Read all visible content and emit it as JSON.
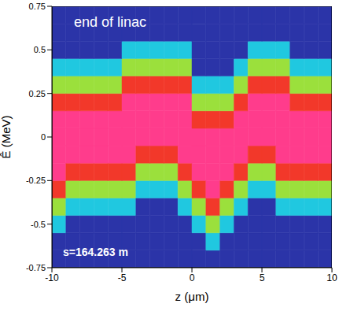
{
  "chart_data": {
    "type": "heatmap",
    "annotations": [
      "end of linac",
      "s=164.263 m"
    ],
    "xlabel": "z (μm)",
    "ylabel": "Ê (MeV)",
    "xlim": [
      -10,
      10
    ],
    "xticks": [
      -10,
      -5,
      0,
      5,
      10
    ],
    "ylim": [
      -0.75,
      0.75
    ],
    "yticks": [
      -0.75,
      -0.5,
      -0.25,
      0,
      0.25,
      0.5,
      0.75
    ],
    "x_edges": [
      -10,
      -9,
      -8,
      -7,
      -6,
      -5,
      -4,
      -3,
      -2,
      -1,
      0,
      1,
      2,
      3,
      4,
      5,
      6,
      7,
      8,
      9,
      10
    ],
    "y_edges": [
      -0.75,
      -0.65,
      -0.55,
      -0.45,
      -0.35,
      -0.25,
      -0.15,
      -0.05,
      0.05,
      0.15,
      0.25,
      0.35,
      0.45,
      0.55,
      0.65,
      0.75
    ],
    "cells": [
      [
        0,
        0,
        0,
        0,
        0,
        0,
        0,
        0,
        0,
        0,
        0,
        0,
        0,
        0,
        0,
        0,
        0,
        0,
        0,
        0
      ],
      [
        0,
        0,
        0,
        0,
        0,
        0,
        0,
        0,
        0,
        0,
        0,
        0.2,
        0,
        0,
        0,
        0,
        0,
        0,
        0,
        0
      ],
      [
        0.2,
        0,
        0,
        0,
        0,
        0,
        0,
        0,
        0,
        0,
        0.2,
        0.5,
        0.2,
        0,
        0,
        0,
        0,
        0,
        0,
        0
      ],
      [
        0.5,
        0.2,
        0.2,
        0.2,
        0.2,
        0.2,
        0,
        0,
        0,
        0.2,
        0.5,
        0.75,
        0.5,
        0.2,
        0,
        0,
        0.2,
        0.2,
        0.2,
        0.2
      ],
      [
        0.75,
        0.5,
        0.5,
        0.5,
        0.5,
        0.5,
        0.2,
        0.2,
        0.2,
        0.5,
        0.75,
        1,
        0.75,
        0.5,
        0.2,
        0.2,
        0.5,
        0.5,
        0.5,
        0.5
      ],
      [
        1,
        0.75,
        0.75,
        0.75,
        0.75,
        0.75,
        0.5,
        0.5,
        0.5,
        0.75,
        1,
        1,
        1,
        0.75,
        0.5,
        0.5,
        0.75,
        0.75,
        0.75,
        0.75
      ],
      [
        1,
        1,
        1,
        1,
        1,
        1,
        0.75,
        0.75,
        0.75,
        1,
        1,
        1,
        1,
        1,
        0.75,
        0.75,
        1,
        1,
        1,
        1
      ],
      [
        1,
        1,
        1,
        1,
        1,
        1,
        1,
        1,
        1,
        1,
        1,
        1,
        1,
        1,
        1,
        1,
        1,
        1,
        1,
        1
      ],
      [
        1,
        1,
        1,
        1,
        1,
        1,
        1,
        1,
        1,
        1,
        0.75,
        0.75,
        0.75,
        1,
        1,
        1,
        1,
        1,
        1,
        1
      ],
      [
        0.75,
        0.75,
        0.75,
        0.75,
        0.75,
        1,
        1,
        1,
        1,
        1,
        0.5,
        0.5,
        0.5,
        0.75,
        1,
        1,
        1,
        0.75,
        0.75,
        0.75
      ],
      [
        0.5,
        0.5,
        0.5,
        0.5,
        0.5,
        0.75,
        0.75,
        0.75,
        0.75,
        0.75,
        0.2,
        0.2,
        0.2,
        0.5,
        0.75,
        0.75,
        0.75,
        0.5,
        0.5,
        0.5
      ],
      [
        0.2,
        0.2,
        0.2,
        0.2,
        0.2,
        0.5,
        0.5,
        0.5,
        0.5,
        0.5,
        0,
        0,
        0,
        0.2,
        0.5,
        0.5,
        0.5,
        0.2,
        0.2,
        0.2
      ],
      [
        0,
        0,
        0,
        0,
        0,
        0.2,
        0.2,
        0.2,
        0.2,
        0.2,
        0,
        0,
        0,
        0,
        0.2,
        0.2,
        0.2,
        0,
        0,
        0
      ],
      [
        0,
        0,
        0,
        0,
        0,
        0,
        0,
        0,
        0,
        0,
        0,
        0,
        0,
        0,
        0,
        0,
        0,
        0,
        0,
        0
      ],
      [
        0,
        0,
        0,
        0,
        0,
        0,
        0,
        0,
        0,
        0,
        0,
        0,
        0,
        0,
        0,
        0,
        0,
        0,
        0,
        0
      ]
    ]
  }
}
